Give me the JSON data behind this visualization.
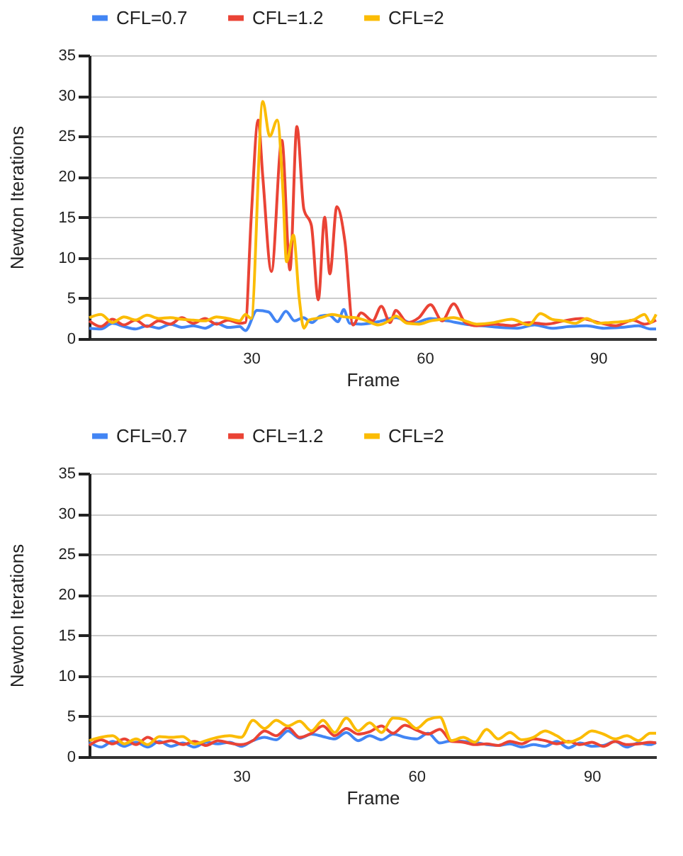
{
  "chart_data": [
    {
      "type": "line",
      "xlabel": "Frame",
      "ylabel": "Newton Iterations",
      "xlim": [
        2,
        100
      ],
      "xticks": [
        30,
        60,
        90
      ],
      "ylim": [
        0,
        35
      ],
      "yticks": [
        0,
        5,
        10,
        15,
        20,
        25,
        30,
        35
      ],
      "grid": "y",
      "legend": "top",
      "marker": "none",
      "line_style": "solid",
      "series": [
        {
          "name": "CFL=0.7",
          "color": "#4285f4",
          "x": [
            2,
            4,
            6,
            8,
            10,
            12,
            14,
            16,
            18,
            20,
            22,
            24,
            26,
            28,
            29,
            31,
            33,
            34.5,
            36,
            37.5,
            39,
            40.5,
            42,
            43.5,
            45,
            46,
            47,
            49,
            52,
            55,
            58,
            61,
            64,
            67,
            70,
            73,
            76,
            79,
            82,
            85,
            88,
            91,
            94,
            97,
            99,
            100
          ],
          "values": [
            1.3,
            1.2,
            1.9,
            1.5,
            1.2,
            1.6,
            1.3,
            1.8,
            1.4,
            1.6,
            1.3,
            1.9,
            1.4,
            1.5,
            1.0,
            3.5,
            3.3,
            2.1,
            3.4,
            2.2,
            2.6,
            2.0,
            2.8,
            2.9,
            2.1,
            3.6,
            1.9,
            1.8,
            2.1,
            2.6,
            1.9,
            2.5,
            2.2,
            1.8,
            1.6,
            1.4,
            1.3,
            1.7,
            1.3,
            1.5,
            1.6,
            1.3,
            1.4,
            1.6,
            1.2,
            1.2
          ]
        },
        {
          "name": "CFL=1.2",
          "color": "#ea4335",
          "x": [
            2,
            4,
            6,
            8,
            10,
            12,
            14,
            16,
            18,
            20,
            22,
            24,
            26,
            28,
            29,
            30,
            31.2,
            32,
            33.5,
            35.3,
            36.7,
            37.9,
            39.1,
            40.4,
            41.6,
            42.7,
            43.6,
            44.8,
            46.2,
            47.6,
            49,
            51,
            52.5,
            54,
            55,
            57,
            59,
            61,
            63,
            65,
            67,
            69,
            72,
            75,
            78,
            81,
            84,
            87,
            90,
            93,
            96,
            98,
            100
          ],
          "values": [
            2.2,
            1.5,
            2.4,
            1.7,
            2.3,
            1.5,
            2.2,
            1.8,
            2.6,
            1.9,
            2.5,
            1.8,
            2.3,
            1.9,
            2.0,
            15,
            27,
            20,
            8.3,
            24.5,
            8.5,
            26.2,
            16,
            14,
            4.8,
            15,
            8,
            16.3,
            12,
            1.7,
            3.2,
            2.2,
            4.0,
            2.0,
            3.5,
            2.0,
            2.6,
            4.2,
            2.2,
            4.3,
            2.0,
            1.6,
            1.8,
            1.6,
            2.0,
            1.8,
            2.2,
            2.5,
            2.0,
            1.6,
            2.3,
            1.8,
            2.3
          ]
        },
        {
          "name": "CFL=2",
          "color": "#fbbc04",
          "x": [
            2,
            4,
            6,
            8,
            10,
            12,
            14,
            16,
            18,
            20,
            22,
            24,
            26,
            28,
            29,
            30,
            32,
            33.2,
            34.5,
            35.5,
            36.1,
            37.3,
            38.3,
            39.1,
            40,
            42,
            44,
            46,
            48,
            50,
            52,
            54,
            55,
            57,
            59,
            61,
            63,
            65,
            67,
            69,
            72,
            75,
            78,
            80,
            82,
            84,
            86,
            88,
            90,
            92,
            94,
            96,
            98,
            99,
            100
          ],
          "values": [
            2.6,
            3.0,
            2.0,
            2.7,
            2.3,
            2.9,
            2.5,
            2.6,
            2.4,
            2.3,
            2.2,
            2.7,
            2.5,
            2.2,
            3.0,
            2.5,
            29.3,
            25,
            27,
            18,
            9.5,
            12.8,
            5,
            1.3,
            2.3,
            2.6,
            3.0,
            2.7,
            2.6,
            2.2,
            1.7,
            2.3,
            2.8,
            1.9,
            1.8,
            2.2,
            2.4,
            2.6,
            2.2,
            1.8,
            2.0,
            2.4,
            1.7,
            3.1,
            2.4,
            2.2,
            1.9,
            2.5,
            1.9,
            2.0,
            2.1,
            2.3,
            3.0,
            2.0,
            3.0
          ]
        }
      ]
    },
    {
      "type": "line",
      "xlabel": "Frame",
      "ylabel": "Newton Iterations",
      "xlim": [
        4,
        101
      ],
      "xticks": [
        30,
        60,
        90
      ],
      "ylim": [
        0,
        35
      ],
      "yticks": [
        0,
        5,
        10,
        15,
        20,
        25,
        30,
        35
      ],
      "grid": "y",
      "legend": "top",
      "marker": "none",
      "line_style": "solid",
      "x": [
        4,
        6,
        8,
        10,
        12,
        14,
        16,
        18,
        20,
        22,
        24,
        26,
        28,
        30,
        32,
        34,
        36,
        38,
        40,
        42,
        44,
        46,
        48,
        50,
        52,
        54,
        56,
        58,
        60,
        62,
        64,
        66,
        68,
        70,
        72,
        74,
        76,
        78,
        80,
        82,
        84,
        86,
        88,
        90,
        92,
        94,
        96,
        98,
        100,
        101
      ],
      "series": [
        {
          "name": "CFL=0.7",
          "color": "#4285f4",
          "values": [
            1.8,
            1.2,
            1.9,
            1.3,
            1.8,
            1.2,
            1.9,
            1.3,
            1.7,
            1.2,
            1.8,
            1.6,
            1.8,
            1.3,
            2.0,
            2.4,
            2.1,
            3.2,
            2.3,
            2.8,
            2.5,
            2.2,
            3.0,
            2.0,
            2.6,
            2.1,
            2.8,
            2.4,
            2.2,
            2.9,
            1.7,
            2.0,
            1.9,
            1.8,
            1.5,
            1.4,
            1.6,
            1.2,
            1.5,
            1.3,
            1.9,
            1.1,
            1.7,
            1.3,
            1.4,
            1.9,
            1.2,
            1.7,
            1.5,
            1.8
          ]
        },
        {
          "name": "CFL=1.2",
          "color": "#ea4335",
          "values": [
            1.4,
            2.1,
            1.6,
            2.2,
            1.5,
            2.4,
            1.7,
            2.0,
            1.5,
            1.9,
            1.4,
            2.0,
            1.7,
            1.5,
            2.0,
            3.2,
            2.6,
            3.6,
            2.4,
            2.9,
            3.8,
            2.6,
            3.5,
            2.8,
            3.1,
            3.8,
            2.9,
            3.9,
            3.3,
            2.8,
            3.4,
            1.9,
            1.8,
            1.5,
            1.6,
            1.4,
            1.9,
            1.6,
            2.2,
            2.0,
            1.6,
            1.9,
            1.5,
            1.8,
            1.3,
            1.9,
            1.5,
            1.6,
            1.8,
            1.7
          ]
        },
        {
          "name": "CFL=2",
          "color": "#fbbc04",
          "values": [
            2.0,
            2.4,
            2.6,
            1.6,
            2.2,
            1.5,
            2.5,
            2.4,
            2.5,
            1.6,
            2.0,
            2.4,
            2.6,
            2.4,
            4.5,
            3.5,
            4.5,
            3.8,
            4.4,
            3.2,
            4.5,
            3.0,
            4.8,
            3.2,
            4.2,
            3.0,
            4.8,
            4.6,
            3.5,
            4.6,
            4.9,
            2.0,
            2.4,
            1.8,
            3.4,
            2.2,
            3.0,
            2.1,
            2.4,
            3.2,
            2.6,
            1.8,
            2.3,
            3.2,
            2.8,
            2.2,
            2.6,
            2.0,
            2.9,
            2.9
          ]
        }
      ]
    }
  ]
}
